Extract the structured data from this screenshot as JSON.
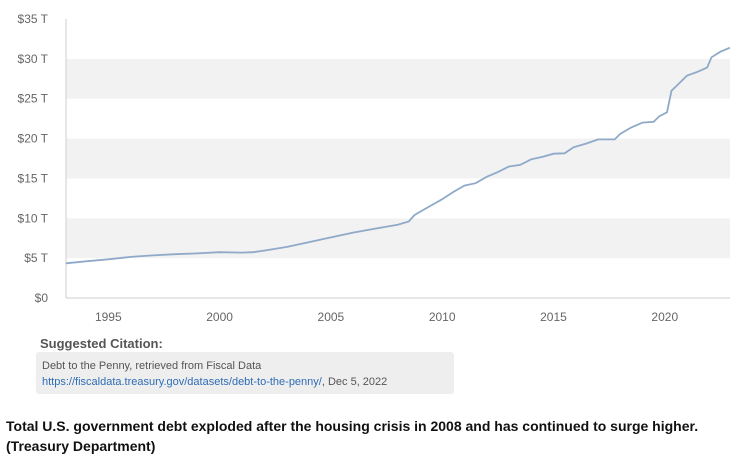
{
  "chart_data": {
    "type": "line",
    "title": "",
    "xlabel": "",
    "ylabel": "",
    "xlim": [
      1993.1,
      2022.93
    ],
    "ylim": [
      0,
      35
    ],
    "x_ticks": [
      1995,
      2000,
      2005,
      2010,
      2015,
      2020
    ],
    "x_tick_labels": [
      "1995",
      "2000",
      "2005",
      "2010",
      "2015",
      "2020"
    ],
    "y_ticks": [
      0,
      5,
      10,
      15,
      20,
      25,
      30,
      35
    ],
    "y_tick_labels": [
      "$0",
      "$5 T",
      "$10 T",
      "$15 T",
      "$20 T",
      "$25 T",
      "$30 T",
      "$35 T"
    ],
    "grid": "alternating horizontal bands",
    "series": [
      {
        "color": "#8fa9c9",
        "points": [
          [
            1993.1,
            4.35
          ],
          [
            1994.0,
            4.6
          ],
          [
            1995.0,
            4.85
          ],
          [
            1996.0,
            5.15
          ],
          [
            1997.0,
            5.35
          ],
          [
            1998.0,
            5.5
          ],
          [
            1999.0,
            5.6
          ],
          [
            2000.0,
            5.75
          ],
          [
            2001.0,
            5.7
          ],
          [
            2001.5,
            5.75
          ],
          [
            2002.0,
            5.95
          ],
          [
            2003.0,
            6.4
          ],
          [
            2004.0,
            7.0
          ],
          [
            2005.0,
            7.6
          ],
          [
            2006.0,
            8.2
          ],
          [
            2007.0,
            8.7
          ],
          [
            2008.0,
            9.2
          ],
          [
            2008.5,
            9.6
          ],
          [
            2008.75,
            10.4
          ],
          [
            2009.0,
            10.8
          ],
          [
            2009.5,
            11.6
          ],
          [
            2010.0,
            12.4
          ],
          [
            2010.5,
            13.3
          ],
          [
            2011.0,
            14.1
          ],
          [
            2011.5,
            14.4
          ],
          [
            2012.0,
            15.2
          ],
          [
            2012.5,
            15.8
          ],
          [
            2013.0,
            16.5
          ],
          [
            2013.5,
            16.7
          ],
          [
            2014.0,
            17.4
          ],
          [
            2014.5,
            17.7
          ],
          [
            2015.0,
            18.1
          ],
          [
            2015.5,
            18.15
          ],
          [
            2015.9,
            18.9
          ],
          [
            2016.5,
            19.4
          ],
          [
            2017.0,
            19.9
          ],
          [
            2017.75,
            19.9
          ],
          [
            2018.0,
            20.6
          ],
          [
            2018.5,
            21.4
          ],
          [
            2019.0,
            22.0
          ],
          [
            2019.5,
            22.1
          ],
          [
            2019.75,
            22.8
          ],
          [
            2020.1,
            23.3
          ],
          [
            2020.3,
            26.0
          ],
          [
            2020.6,
            26.8
          ],
          [
            2021.0,
            27.9
          ],
          [
            2021.5,
            28.4
          ],
          [
            2021.9,
            28.9
          ],
          [
            2022.1,
            30.2
          ],
          [
            2022.5,
            30.9
          ],
          [
            2022.93,
            31.4
          ]
        ]
      }
    ]
  },
  "citation": {
    "heading": "Suggested Citation:",
    "source": "Debt to the Penny, retrieved from Fiscal Data",
    "url": "https://fiscaldata.treasury.gov/datasets/debt-to-the-penny/",
    "date": ", Dec 5, 2022"
  },
  "caption": "Total U.S. government debt exploded after the housing crisis in 2008 and has continued to surge higher. (Treasury Department)"
}
